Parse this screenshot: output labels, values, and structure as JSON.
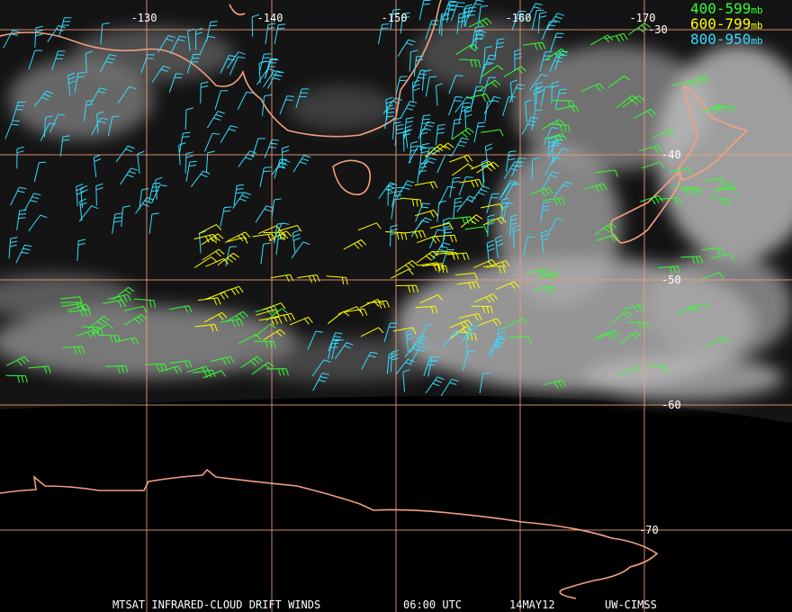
{
  "map": {
    "longitude_labels": [
      "-130",
      "-140",
      "-150",
      "-160",
      "-170"
    ],
    "latitude_labels": [
      "-30",
      "-40",
      "-50",
      "-60",
      "-70"
    ],
    "legend": [
      {
        "range": "400-599",
        "unit": "mb",
        "color": "#33ff33"
      },
      {
        "range": "600-799",
        "unit": "mb",
        "color": "#ffff00"
      },
      {
        "range": "800-950",
        "unit": "mb",
        "color": "#33ddff"
      }
    ],
    "footer": {
      "product": "MTSAT INFRARED-CLOUD DRIFT WINDS",
      "time": "06:00 UTC",
      "date": "14MAY12",
      "source": "UW-CIMSS"
    }
  }
}
